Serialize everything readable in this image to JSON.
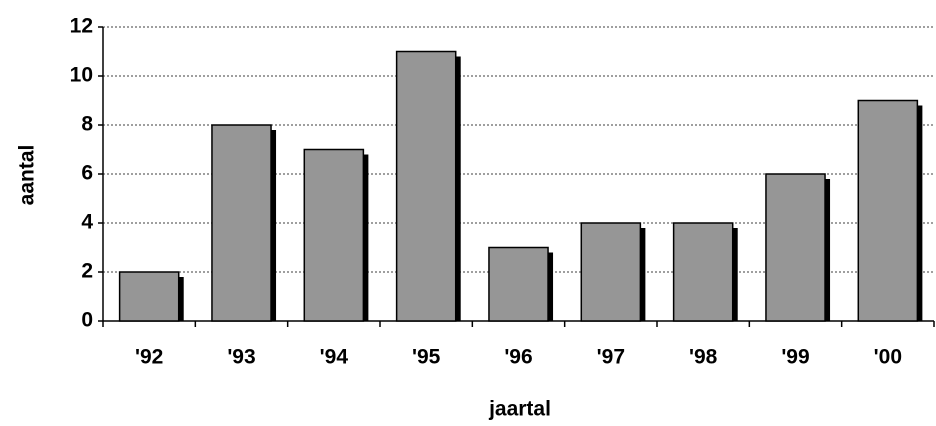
{
  "chart_data": {
    "type": "bar",
    "x_label": "jaartal",
    "y_label": "aantal",
    "categories": [
      "'92",
      "'93",
      "'94",
      "'95",
      "'96",
      "'97",
      "'98",
      "'99",
      "'00"
    ],
    "values": [
      2,
      8,
      7,
      11,
      3,
      4,
      4,
      6,
      9
    ],
    "color": "#969696",
    "ylim": [
      0,
      12
    ],
    "yticks": [
      0,
      2,
      4,
      6,
      8,
      10,
      12
    ],
    "grid": true
  }
}
